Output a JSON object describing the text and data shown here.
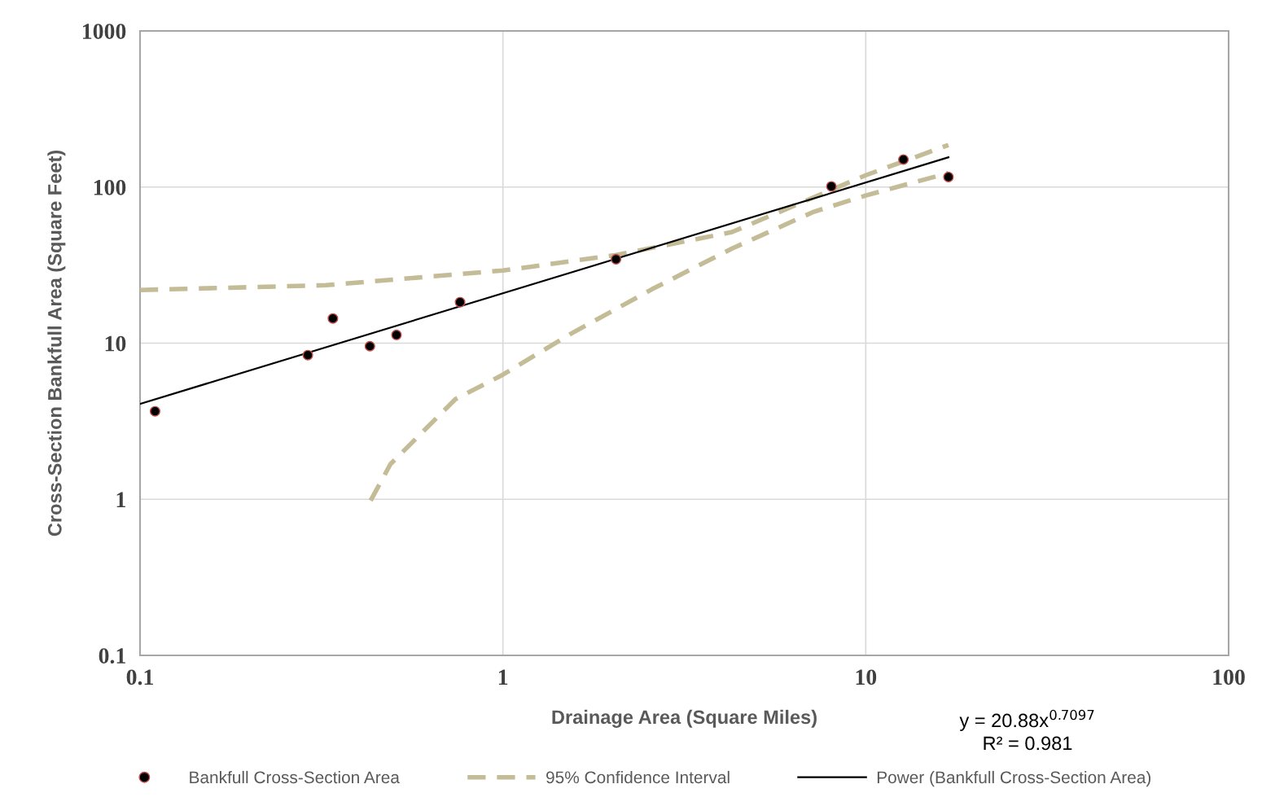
{
  "chart_data": {
    "type": "scatter",
    "xlabel": "Drainage Area (Square Miles)",
    "ylabel": "Cross-Section Bankfull Area (Square Feet)",
    "log": "xy",
    "xlim": [
      0.1,
      100
    ],
    "ylim": [
      0.1,
      1000
    ],
    "xticks": [
      0.1,
      1,
      10,
      100
    ],
    "yticks": [
      0.1,
      1,
      10,
      100,
      1000
    ],
    "grid": true,
    "legend": "bottom",
    "series": [
      {
        "name": "Bankfull Cross-Section Area",
        "marker": "circle",
        "color": "#000000",
        "x": [
          0.11,
          0.29,
          0.34,
          0.43,
          0.509,
          0.762,
          2.05,
          8.04,
          12.7,
          16.9
        ],
        "values": [
          3.66,
          8.38,
          14.4,
          9.56,
          11.3,
          18.3,
          34.5,
          101,
          150,
          116
        ]
      },
      {
        "name": "95% Confidence Interval",
        "type": "line",
        "line_style": "dashed",
        "color": "#c4bc96",
        "x": [
          0.1,
          0.325,
          1,
          2.05,
          4.28,
          10,
          16.9
        ],
        "values": [
          21.9,
          23.5,
          29.2,
          36.7,
          51.5,
          119,
          186
        ]
      },
      {
        "type": "line",
        "line_style": "dashed",
        "color": "#c4bc96",
        "x": [
          0.432,
          0.49,
          0.74,
          1,
          1.53,
          2.58,
          4.28,
          7.2,
          10,
          16.9
        ],
        "values": [
          0.98,
          1.68,
          4.38,
          6.28,
          11.4,
          22.2,
          40.4,
          69.5,
          88.3,
          123
        ]
      },
      {
        "name": "Power (Bankfull Cross-Section Area)",
        "type": "line",
        "line_style": "solid",
        "color": "#000000",
        "x": [
          0.1,
          16.9
        ],
        "values": [
          4.08,
          155
        ]
      }
    ],
    "annotations": [
      "y = 20.88x$^{0.7097}$",
      "R² = 0.981"
    ]
  }
}
